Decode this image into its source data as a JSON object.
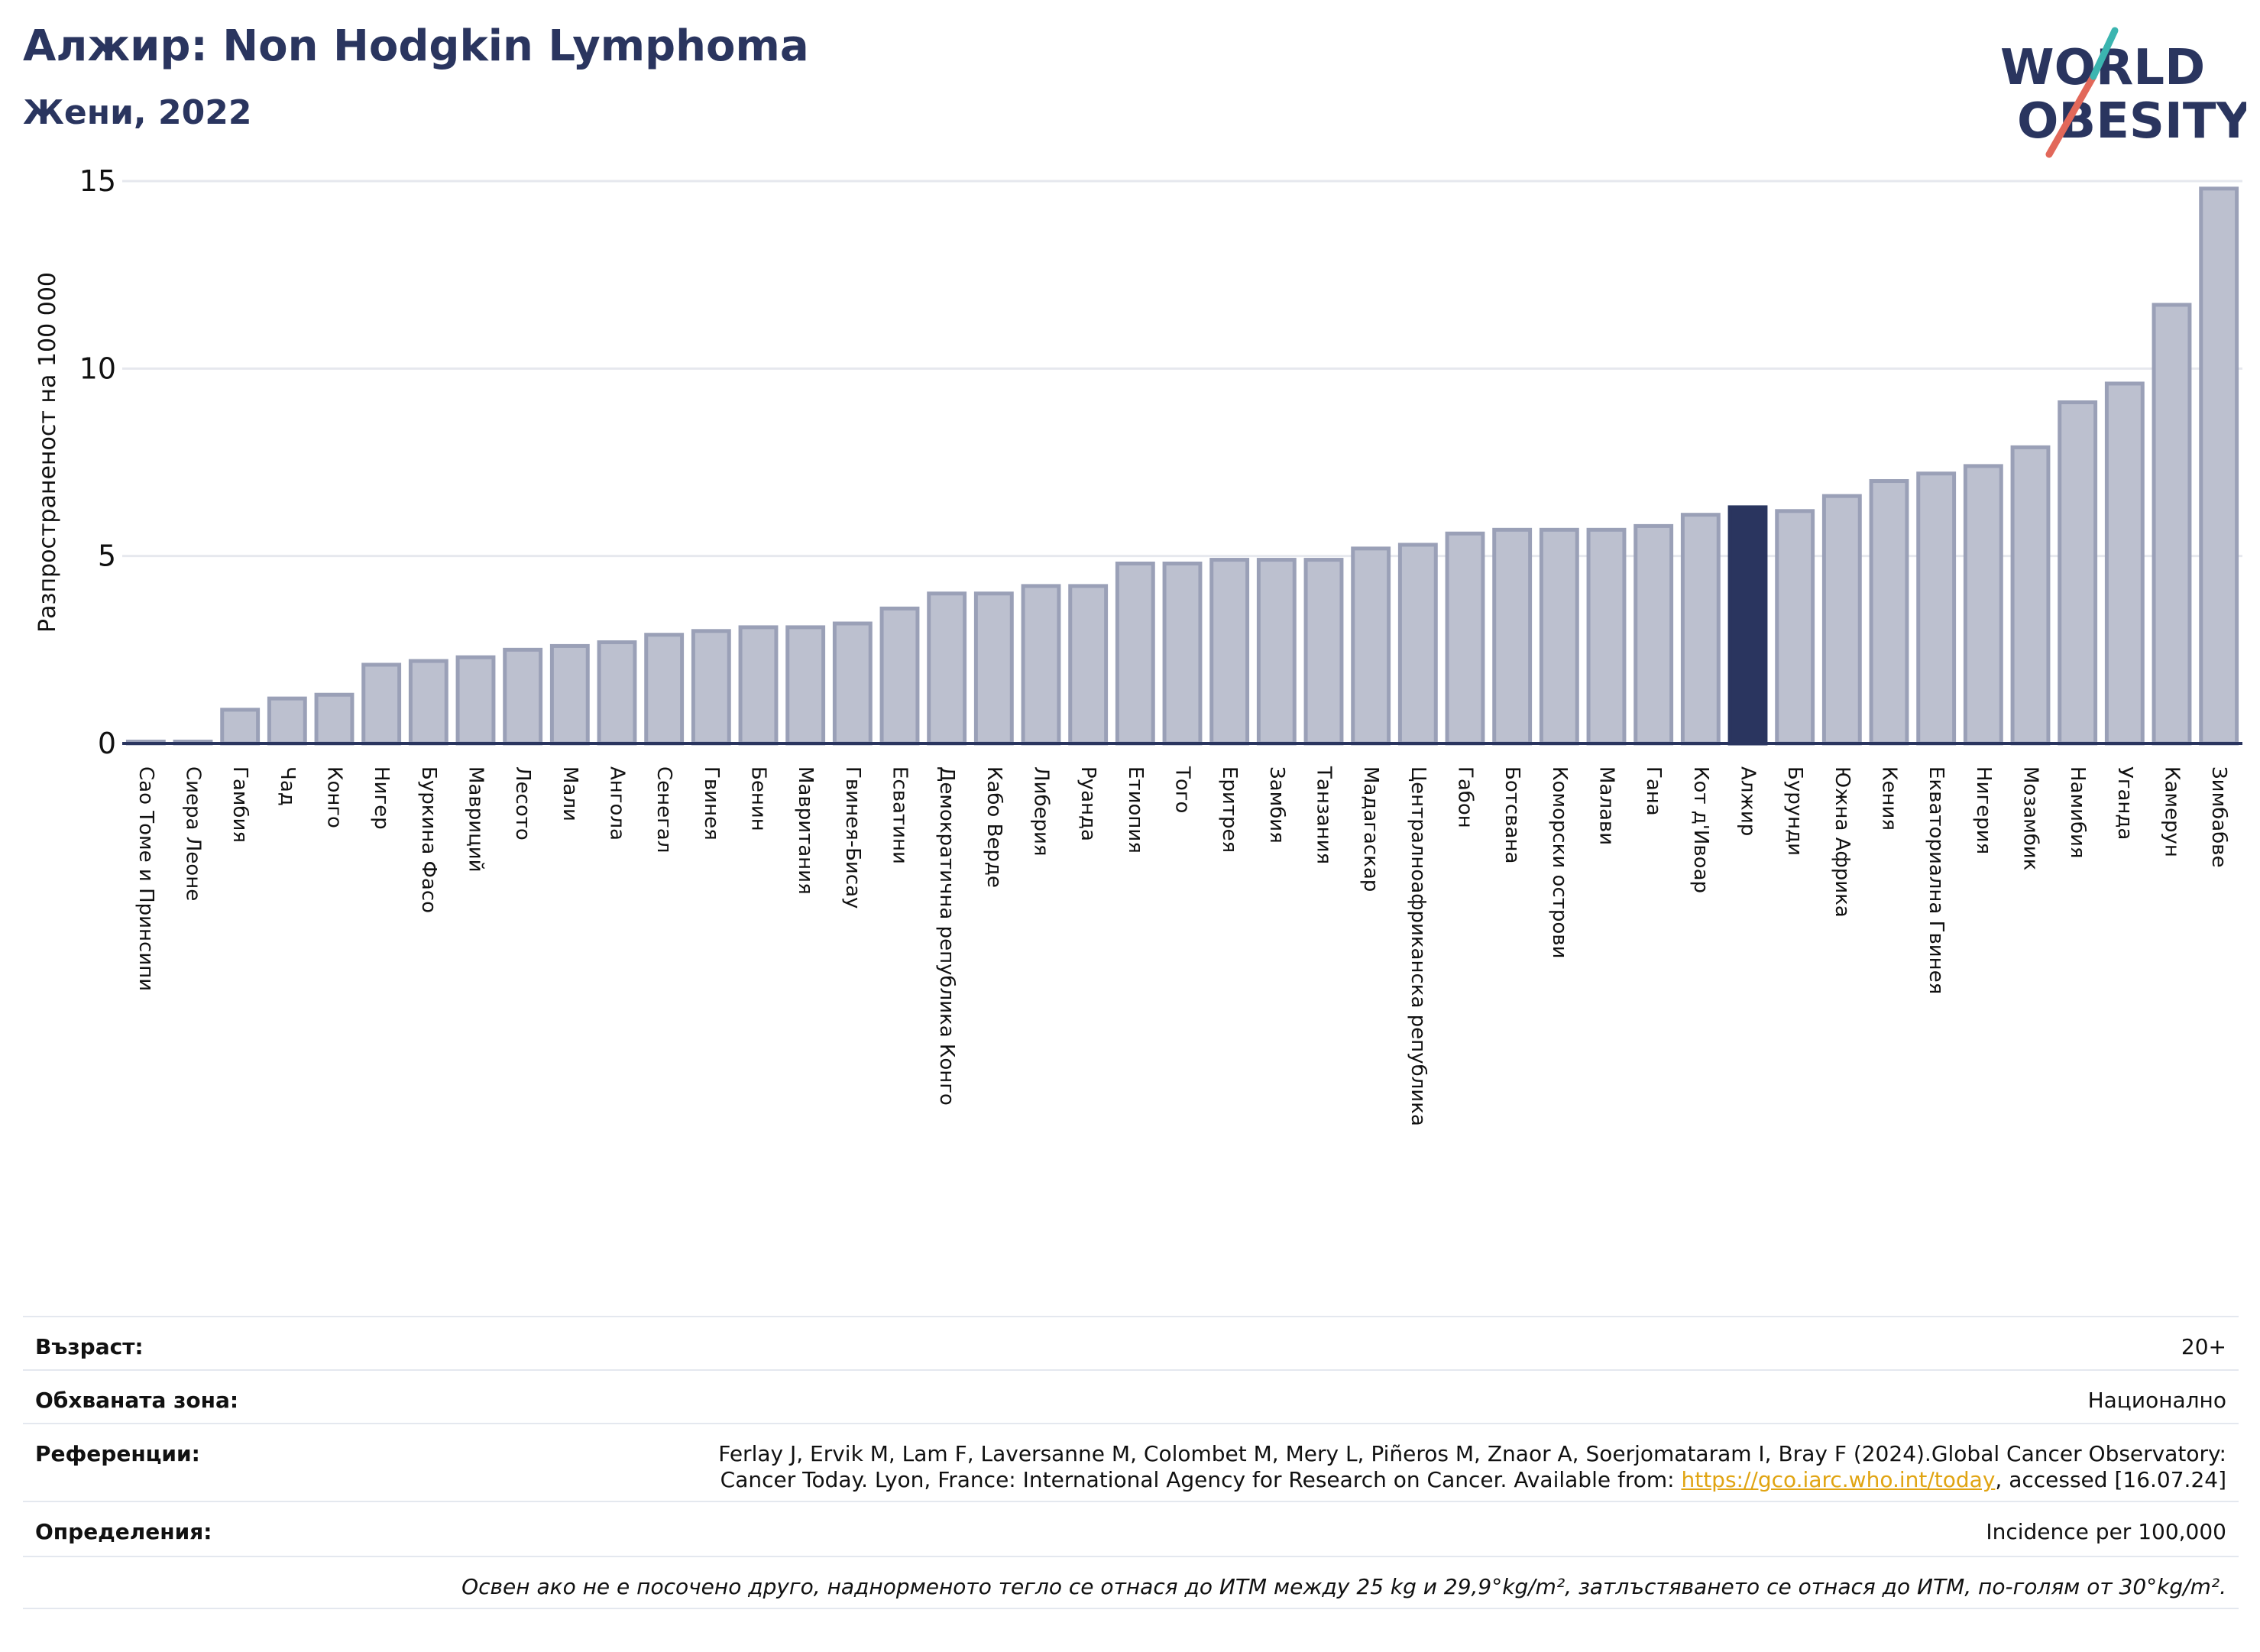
{
  "header": {
    "title": "Алжир: Non Hodgkin Lymphoma",
    "subtitle": "Жени, 2022"
  },
  "logo": {
    "line1": "WORLD",
    "line2": "OBESITY"
  },
  "colors": {
    "bar": "#bcc0cf",
    "bar_edge": "#9aa0b7",
    "highlight": "#2a355f",
    "grid": "#e6e8ee",
    "axis": "#2a355f",
    "logo_teal": "#3bb5b0",
    "logo_red": "#e2685a"
  },
  "chart_data": {
    "type": "bar",
    "ylabel": "Разпространеност на 100 000",
    "ylim": [
      0,
      15
    ],
    "yticks": [
      0,
      5,
      10,
      15
    ],
    "grid": true,
    "highlight": "Алжир",
    "categories": [
      "Сао Томе и Принсипи",
      "Сиера Леоне",
      "Гамбия",
      "Чад",
      "Конго",
      "Нигер",
      "Буркина Фасо",
      "Мавриций",
      "Лесото",
      "Мали",
      "Ангола",
      "Сенегал",
      "Гвинея",
      "Бенин",
      "Мавритания",
      "Гвинея-Бисау",
      "Есватини",
      "Демократична република Конго",
      "Кабо Верде",
      "Либерия",
      "Руанда",
      "Етиопия",
      "Того",
      "Еритрея",
      "Замбия",
      "Танзания",
      "Мадагаскар",
      "Централноафриканска република",
      "Габон",
      "Ботсвана",
      "Коморски острови",
      "Малави",
      "Гана",
      "Кот д'Ивоар",
      "Алжир",
      "Бурунди",
      "Южна Африка",
      "Кения",
      "Екваториална Гвинея",
      "Нигерия",
      "Мозамбик",
      "Намибия",
      "Уганда",
      "Камерун",
      "Зимбабве"
    ],
    "values": [
      0.05,
      0.05,
      0.9,
      1.2,
      1.3,
      2.1,
      2.2,
      2.3,
      2.5,
      2.6,
      2.7,
      2.9,
      3.0,
      3.1,
      3.1,
      3.2,
      3.6,
      4.0,
      4.0,
      4.2,
      4.2,
      4.8,
      4.8,
      4.9,
      4.9,
      4.9,
      5.2,
      5.3,
      5.6,
      5.7,
      5.7,
      5.7,
      5.8,
      6.1,
      6.3,
      6.2,
      6.6,
      7.0,
      7.2,
      7.4,
      7.9,
      9.1,
      9.6,
      11.7,
      14.8
    ]
  },
  "info": {
    "age_label": "Възраст:",
    "age_value": "20+",
    "area_label": "Обхваната зона:",
    "area_value": "Национално",
    "ref_label": "Референции:",
    "ref_line1": "Ferlay J, Ervik M, Lam F, Laversanne M, Colombet M, Mery L, Piñeros M, Znaor A, Soerjomataram I, Bray F (2024).Global Cancer Observatory:",
    "ref_line2_pre": "Cancer Today. Lyon, France: International Agency for Research on Cancer. Available from: ",
    "ref_link": "https://gco.iarc.who.int/today",
    "ref_line2_post": ", accessed [16.07.24]",
    "def_label": "Определения:",
    "def_value": "Incidence per 100,000",
    "note": "Освен ако не е посочено друго, наднорменото тегло се отнася до ИТМ между 25 kg и 29,9°kg/m², затлъстяването се отнася до ИТМ, по-голям от 30°kg/m²."
  }
}
